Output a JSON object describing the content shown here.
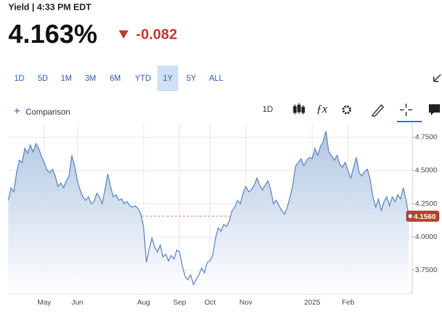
{
  "header": {
    "title": "Yield | 4:33 PM EDT",
    "price": "4.163%",
    "change": "-0.082"
  },
  "ranges": {
    "items": [
      "1D",
      "5D",
      "1M",
      "3M",
      "6M",
      "YTD",
      "1Y",
      "5Y",
      "ALL"
    ],
    "selected": 6
  },
  "toolbar": {
    "comparison": "Comparison",
    "interval": "1D"
  },
  "chart_data": {
    "type": "area",
    "color": "#5b86bf",
    "grid": true,
    "values": [
      4.276,
      4.37,
      4.34,
      4.484,
      4.578,
      4.56,
      4.667,
      4.63,
      4.693,
      4.64,
      4.703,
      4.667,
      4.609,
      4.56,
      4.505,
      4.484,
      4.51,
      4.458,
      4.38,
      4.406,
      4.37,
      4.422,
      4.458,
      4.615,
      4.536,
      4.422,
      4.354,
      4.302,
      4.276,
      4.302,
      4.25,
      4.266,
      4.328,
      4.302,
      4.25,
      4.354,
      4.474,
      4.38,
      4.302,
      4.318,
      4.276,
      4.286,
      4.25,
      4.266,
      4.234,
      4.224,
      4.234,
      4.214,
      4.172,
      4.068,
      3.807,
      3.911,
      3.99,
      3.922,
      3.885,
      3.938,
      3.849,
      3.87,
      3.818,
      3.859,
      3.833,
      3.901,
      3.885,
      3.781,
      3.703,
      3.677,
      3.714,
      3.641,
      3.677,
      3.714,
      3.766,
      3.729,
      3.807,
      3.818,
      3.859,
      3.99,
      4.068,
      4.042,
      4.094,
      4.078,
      4.12,
      4.198,
      4.224,
      4.276,
      4.25,
      4.328,
      4.38,
      4.34,
      4.354,
      4.391,
      4.443,
      4.391,
      4.354,
      4.391,
      4.422,
      4.354,
      4.25,
      4.276,
      4.234,
      4.198,
      4.172,
      4.224,
      4.302,
      4.391,
      4.536,
      4.56,
      4.589,
      4.536,
      4.578,
      4.599,
      4.589,
      4.667,
      4.615,
      4.682,
      4.719,
      4.797,
      4.641,
      4.615,
      4.578,
      4.615,
      4.547,
      4.526,
      4.563,
      4.495,
      4.443,
      4.526,
      4.599,
      4.484,
      4.458,
      4.495,
      4.51,
      4.432,
      4.302,
      4.224,
      4.286,
      4.198,
      4.266,
      4.302,
      4.234,
      4.302,
      4.266,
      4.318,
      4.286,
      4.37,
      4.276,
      4.156
    ],
    "xlim": [
      0,
      145
    ],
    "xticks": [
      {
        "value": 13,
        "label": "May"
      },
      {
        "value": 25,
        "label": "Jun"
      },
      {
        "value": 49,
        "label": "Aug"
      },
      {
        "value": 62,
        "label": "Sep"
      },
      {
        "value": 73,
        "label": "Oct"
      },
      {
        "value": 86,
        "label": "Nov"
      },
      {
        "value": 110,
        "label": "2025"
      },
      {
        "value": 123,
        "label": "Feb"
      }
    ],
    "ylim": [
      3.573,
      4.859
    ],
    "yticks": [
      {
        "value": 4.75,
        "label": "4.7500"
      },
      {
        "value": 4.5,
        "label": "4.5000"
      },
      {
        "value": 4.25,
        "label": "4.2500"
      },
      {
        "value": 4.0,
        "label": "4.0000"
      },
      {
        "value": 3.75,
        "label": "3.7500"
      }
    ],
    "last_value": {
      "value": 4.156,
      "label": "4.1560"
    }
  }
}
